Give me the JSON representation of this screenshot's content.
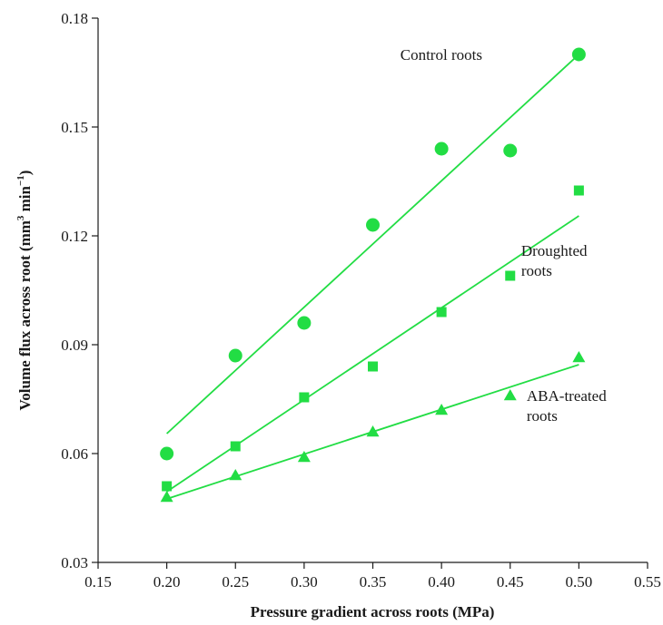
{
  "chart_data": {
    "type": "scatter",
    "title": "",
    "xlabel": "Pressure gradient across roots (MPa)",
    "ylabel_parts": {
      "main": "Volume flux across root (mm",
      "sup1": "3",
      "mid": " min",
      "sup2": "−1",
      "end": ")"
    },
    "xlim": [
      0.15,
      0.55
    ],
    "ylim": [
      0.03,
      0.18
    ],
    "x_ticks": [
      0.15,
      0.2,
      0.25,
      0.3,
      0.35,
      0.4,
      0.45,
      0.5,
      0.55
    ],
    "x_tick_labels": [
      "0.15",
      "0.20",
      "0.25",
      "0.30",
      "0.35",
      "0.40",
      "0.45",
      "0.50",
      "0.55"
    ],
    "y_ticks": [
      0.03,
      0.06,
      0.09,
      0.12,
      0.15,
      0.18
    ],
    "y_tick_labels": [
      "0.03",
      "0.06",
      "0.09",
      "0.12",
      "0.15",
      "0.18"
    ],
    "grid": false,
    "color": "#22dd44",
    "series": [
      {
        "name_lines": [
          "Control roots"
        ],
        "marker": "circle",
        "x": [
          0.2,
          0.25,
          0.3,
          0.35,
          0.4,
          0.45,
          0.5
        ],
        "y": [
          0.06,
          0.087,
          0.096,
          0.123,
          0.144,
          0.1435,
          0.17
        ],
        "fit": {
          "x": [
            0.2,
            0.5
          ],
          "y": [
            0.0655,
            0.17
          ]
        },
        "label_anchor": {
          "x": 0.37,
          "y": 0.1685
        }
      },
      {
        "name_lines": [
          "Droughted",
          "roots"
        ],
        "marker": "square",
        "x": [
          0.2,
          0.25,
          0.3,
          0.35,
          0.4,
          0.45,
          0.5
        ],
        "y": [
          0.051,
          0.062,
          0.0755,
          0.084,
          0.099,
          0.109,
          0.1325
        ],
        "fit": {
          "x": [
            0.2,
            0.5
          ],
          "y": [
            0.0495,
            0.1255
          ]
        },
        "label_anchor": {
          "x": 0.458,
          "y": 0.1145
        }
      },
      {
        "name_lines": [
          "ABA-treated",
          "roots"
        ],
        "marker": "triangle",
        "x": [
          0.2,
          0.25,
          0.3,
          0.35,
          0.4,
          0.45,
          0.5
        ],
        "y": [
          0.048,
          0.054,
          0.059,
          0.066,
          0.072,
          0.076,
          0.0865
        ],
        "fit": {
          "x": [
            0.2,
            0.5
          ],
          "y": [
            0.0475,
            0.0845
          ]
        },
        "label_anchor": {
          "x": 0.462,
          "y": 0.0745
        }
      }
    ]
  }
}
